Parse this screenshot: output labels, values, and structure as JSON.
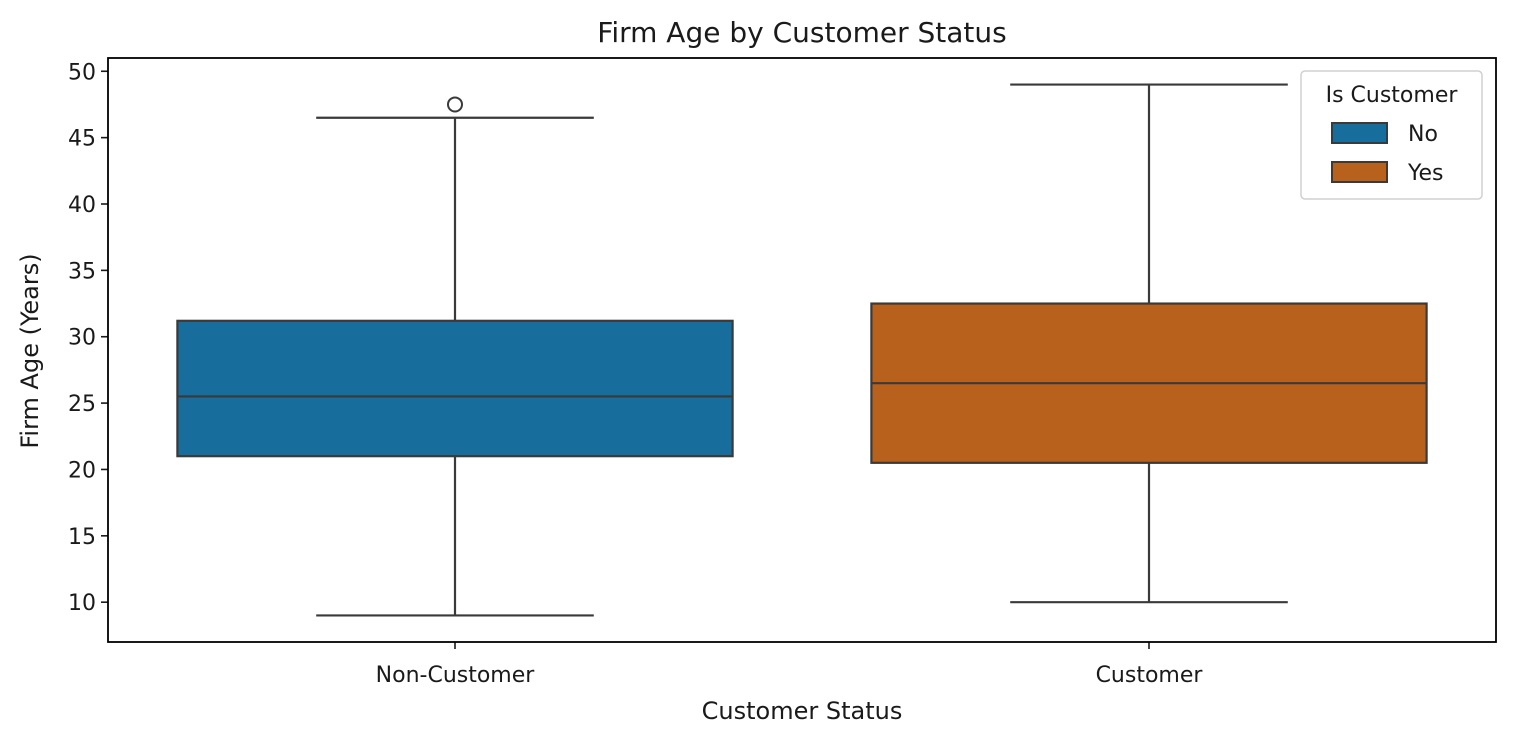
{
  "chart_data": {
    "type": "box",
    "title": "Firm Age by Customer Status",
    "xlabel": "Customer Status",
    "ylabel": "Firm Age (Years)",
    "ylim": [
      7.0,
      51.0
    ],
    "yticks": [
      10,
      15,
      20,
      25,
      30,
      35,
      40,
      45,
      50
    ],
    "categories": [
      "Non-Customer",
      "Customer"
    ],
    "grid": false,
    "legend": {
      "title": "Is Customer",
      "placement": "top-right",
      "entries": [
        {
          "label": "No",
          "color": "#176d9c"
        },
        {
          "label": "Yes",
          "color": "#b8611c"
        }
      ]
    },
    "boxes": [
      {
        "category": "Non-Customer",
        "hue": "No",
        "color": "#176d9c",
        "whisker_low": 9.0,
        "q1": 21.0,
        "median": 25.5,
        "q3": 31.2,
        "whisker_high": 46.5,
        "outliers": [
          47.5
        ]
      },
      {
        "category": "Customer",
        "hue": "Yes",
        "color": "#b8611c",
        "whisker_low": 10.0,
        "q1": 20.5,
        "median": 26.5,
        "q3": 32.5,
        "whisker_high": 49.0,
        "outliers": []
      }
    ]
  }
}
